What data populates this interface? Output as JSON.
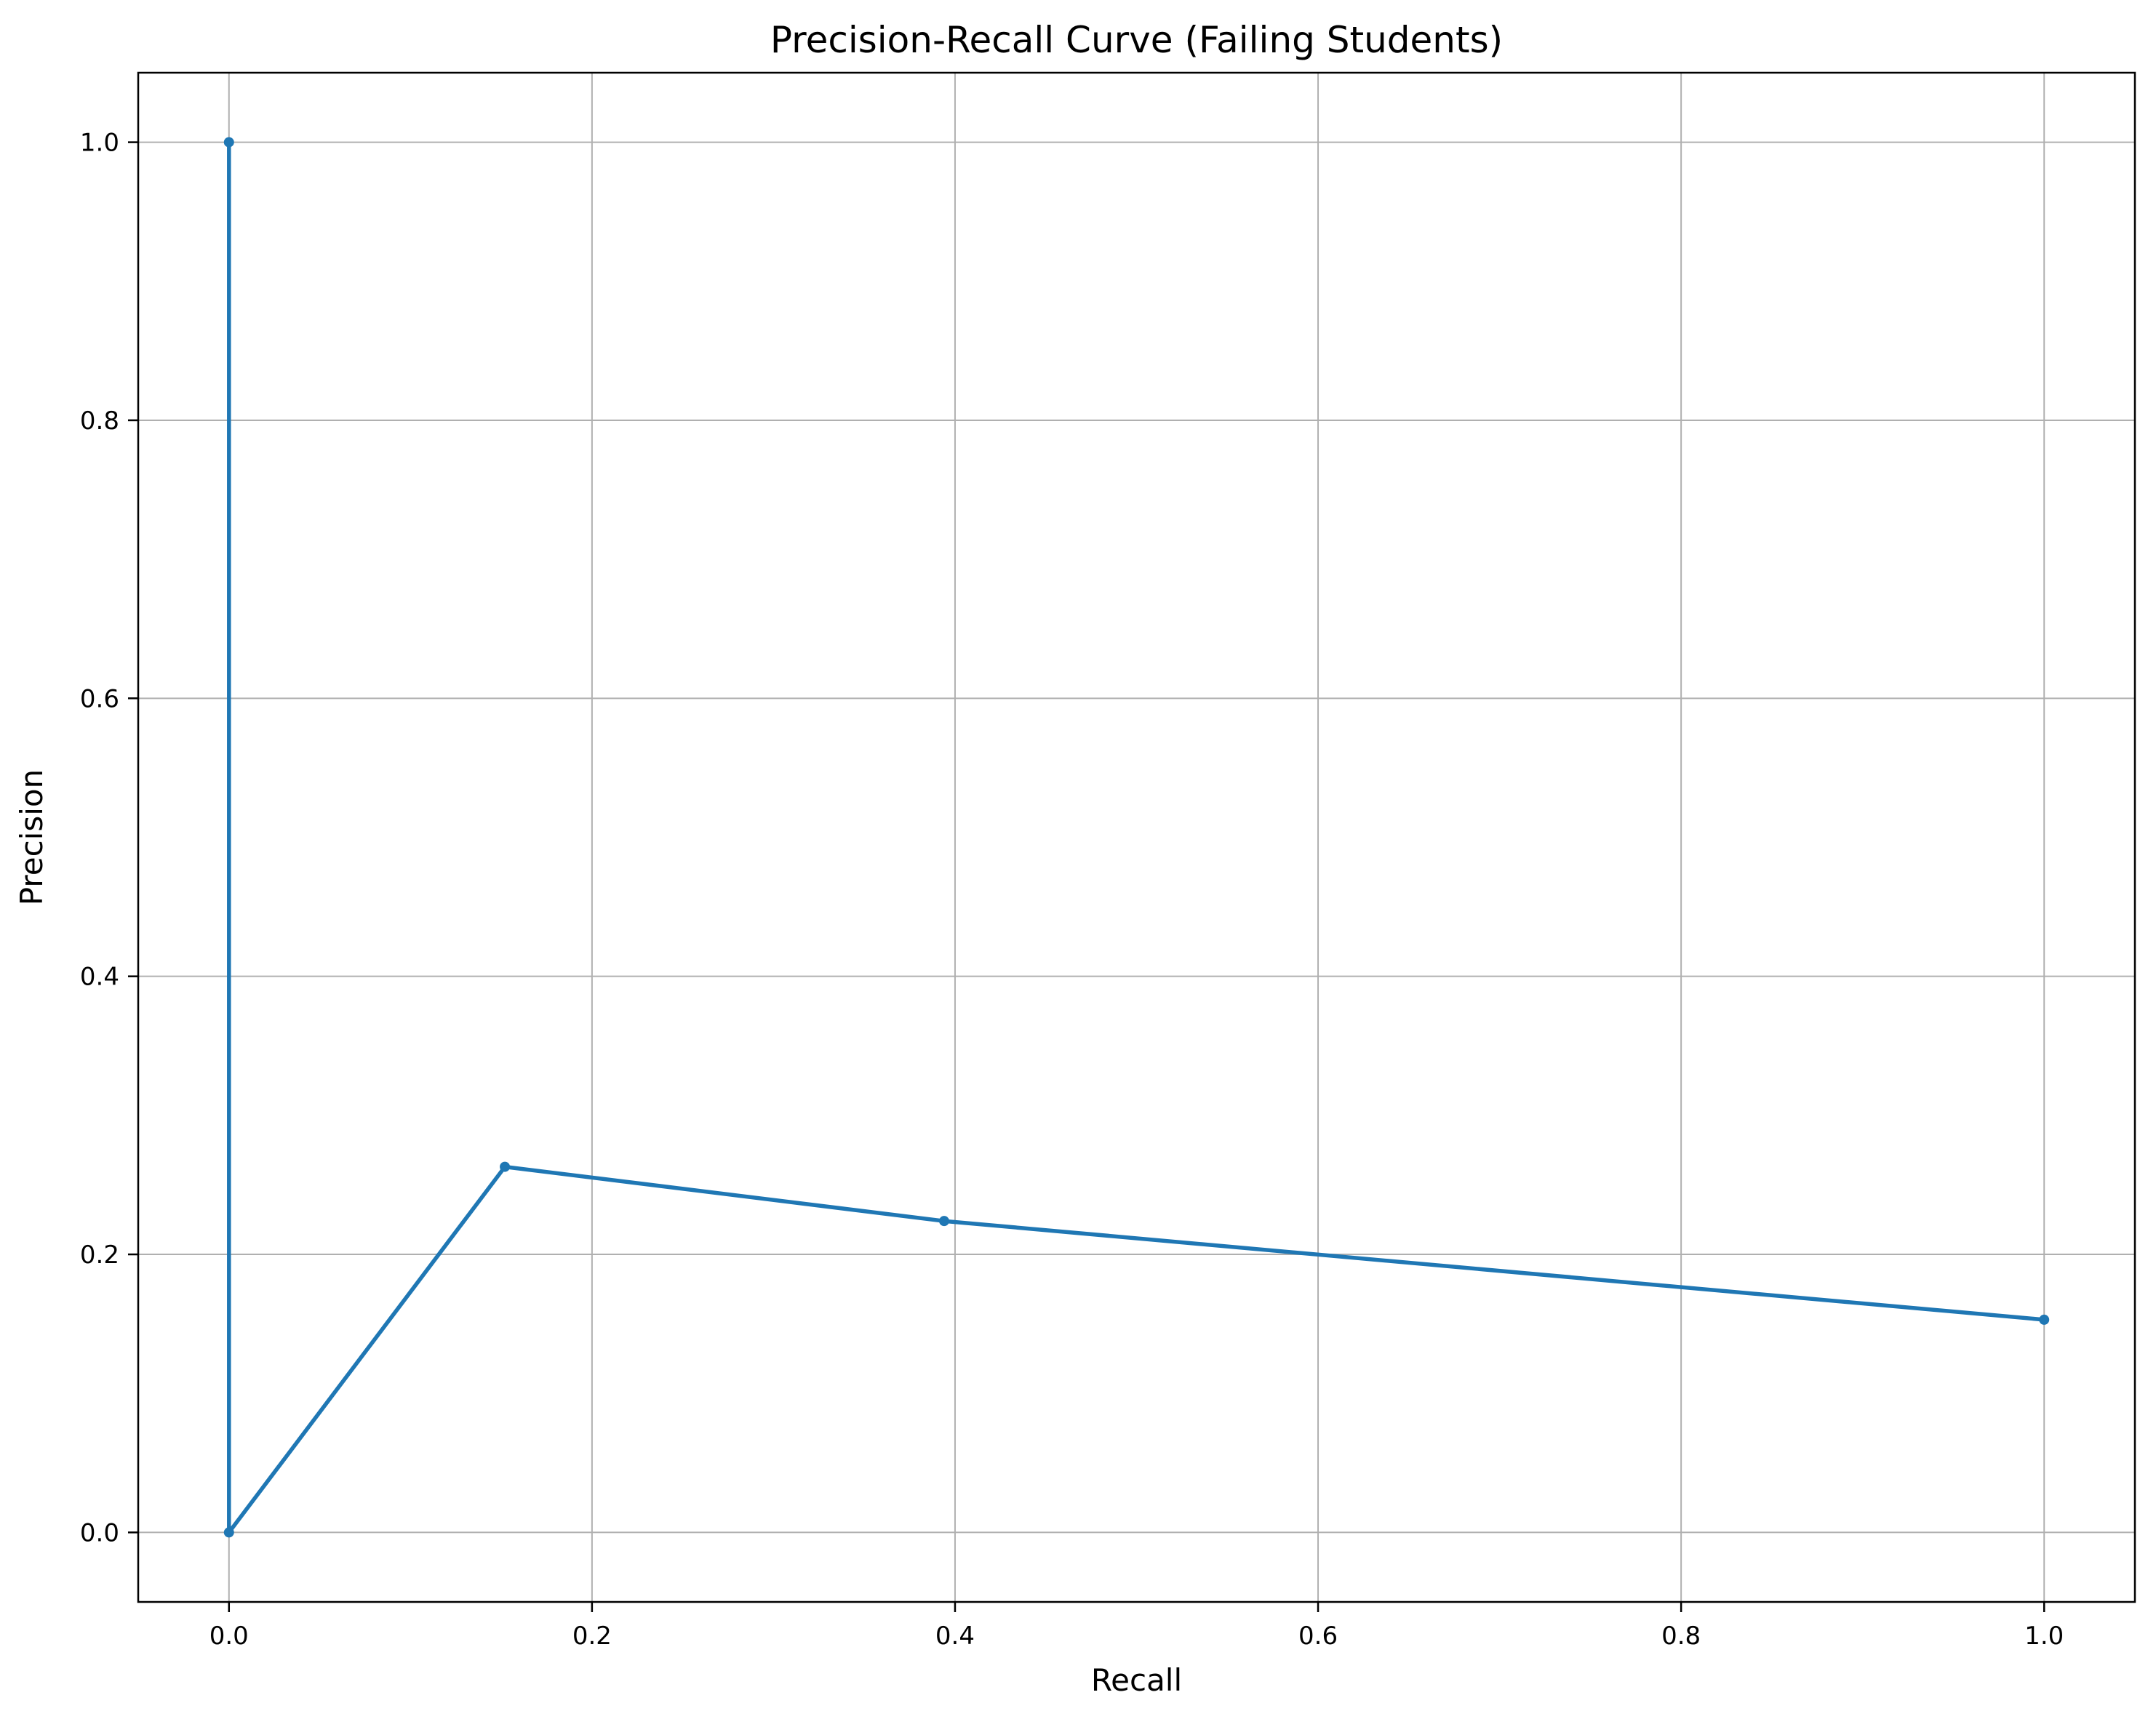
{
  "chart_data": {
    "type": "line",
    "title": "Precision-Recall Curve (Failing Students)",
    "xlabel": "Recall",
    "ylabel": "Precision",
    "xlim": [
      -0.05,
      1.05
    ],
    "ylim": [
      -0.05,
      1.05
    ],
    "xticks": [
      0.0,
      0.2,
      0.4,
      0.6,
      0.8,
      1.0
    ],
    "yticks": [
      0.0,
      0.2,
      0.4,
      0.6,
      0.8,
      1.0
    ],
    "xtick_labels": [
      "0.0",
      "0.2",
      "0.4",
      "0.6",
      "0.8",
      "1.0"
    ],
    "ytick_labels": [
      "0.0",
      "0.2",
      "0.4",
      "0.6",
      "0.8",
      "1.0"
    ],
    "grid": true,
    "series": [
      {
        "x": [
          0.0,
          0.0,
          0.152,
          0.394,
          1.0
        ],
        "y": [
          1.0,
          0.0,
          0.263,
          0.224,
          0.153
        ],
        "color": "#1f77b4",
        "marker": "circle"
      }
    ]
  }
}
